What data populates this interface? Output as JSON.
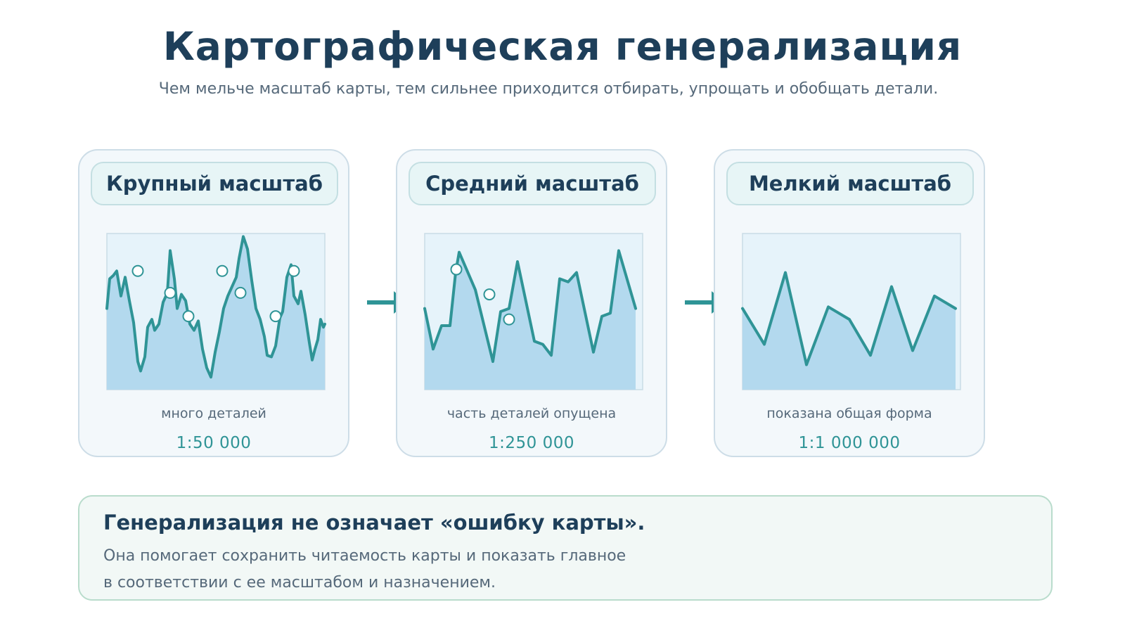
{
  "title": "Картографическая генерализация",
  "subtitle": "Чем мельче масштаб карты, тем сильнее приходится отбирать, упрощать и обобщать детали.",
  "colors": {
    "title": "#1e3f5a",
    "text": "#56697a",
    "accent": "#2f9496",
    "fill": "#b3d9ee",
    "plot_background": "#e6f3fa"
  },
  "panels": [
    {
      "header": "Крупный масштаб",
      "description": "много деталей",
      "scale": "1:50 000",
      "profile": [
        [
          0,
          0.52
        ],
        [
          4,
          0.71
        ],
        [
          9,
          0.73
        ],
        [
          14,
          0.76
        ],
        [
          20,
          0.6
        ],
        [
          26,
          0.72
        ],
        [
          32,
          0.57
        ],
        [
          38,
          0.43
        ],
        [
          44,
          0.18
        ],
        [
          48,
          0.12
        ],
        [
          54,
          0.21
        ],
        [
          58,
          0.4
        ],
        [
          64,
          0.45
        ],
        [
          68,
          0.38
        ],
        [
          74,
          0.42
        ],
        [
          80,
          0.56
        ],
        [
          86,
          0.62
        ],
        [
          90,
          0.89
        ],
        [
          96,
          0.71
        ],
        [
          100,
          0.52
        ],
        [
          106,
          0.61
        ],
        [
          112,
          0.57
        ],
        [
          118,
          0.42
        ],
        [
          124,
          0.38
        ],
        [
          130,
          0.44
        ],
        [
          136,
          0.26
        ],
        [
          142,
          0.14
        ],
        [
          148,
          0.08
        ],
        [
          154,
          0.24
        ],
        [
          160,
          0.37
        ],
        [
          166,
          0.52
        ],
        [
          172,
          0.6
        ],
        [
          178,
          0.66
        ],
        [
          184,
          0.72
        ],
        [
          188,
          0.84
        ],
        [
          194,
          0.98
        ],
        [
          200,
          0.9
        ],
        [
          206,
          0.7
        ],
        [
          212,
          0.52
        ],
        [
          218,
          0.45
        ],
        [
          224,
          0.34
        ],
        [
          228,
          0.22
        ],
        [
          234,
          0.21
        ],
        [
          240,
          0.28
        ],
        [
          246,
          0.46
        ],
        [
          250,
          0.5
        ],
        [
          256,
          0.72
        ],
        [
          262,
          0.8
        ],
        [
          266,
          0.6
        ],
        [
          272,
          0.55
        ],
        [
          276,
          0.63
        ],
        [
          282,
          0.48
        ],
        [
          288,
          0.3
        ],
        [
          292,
          0.19
        ],
        [
          296,
          0.26
        ],
        [
          300,
          0.32
        ],
        [
          304,
          0.45
        ],
        [
          308,
          0.4
        ],
        [
          310,
          0.42
        ]
      ],
      "markers": [
        [
          44,
          0.76
        ],
        [
          90,
          0.62
        ],
        [
          116,
          0.47
        ],
        [
          164,
          0.76
        ],
        [
          190,
          0.62
        ],
        [
          240,
          0.47
        ],
        [
          266,
          0.76
        ]
      ]
    },
    {
      "header": "Средний масштаб",
      "description": "часть деталей опущена",
      "scale": "1:250 000",
      "profile": [
        [
          0,
          0.52
        ],
        [
          12,
          0.26
        ],
        [
          24,
          0.41
        ],
        [
          36,
          0.41
        ],
        [
          44,
          0.75
        ],
        [
          49,
          0.88
        ],
        [
          72,
          0.64
        ],
        [
          97,
          0.18
        ],
        [
          108,
          0.5
        ],
        [
          120,
          0.52
        ],
        [
          132,
          0.82
        ],
        [
          156,
          0.31
        ],
        [
          168,
          0.29
        ],
        [
          180,
          0.22
        ],
        [
          192,
          0.71
        ],
        [
          204,
          0.69
        ],
        [
          216,
          0.75
        ],
        [
          240,
          0.24
        ],
        [
          252,
          0.47
        ],
        [
          264,
          0.49
        ],
        [
          276,
          0.89
        ],
        [
          300,
          0.52
        ]
      ],
      "markers": [
        [
          45,
          0.77
        ],
        [
          92,
          0.61
        ],
        [
          120,
          0.45
        ]
      ]
    },
    {
      "header": "Мелкий масштаб",
      "description": "показана общая форма",
      "scale": "1:1 000 000",
      "profile": [
        [
          0,
          0.52
        ],
        [
          31,
          0.29
        ],
        [
          61,
          0.75
        ],
        [
          91,
          0.16
        ],
        [
          122,
          0.53
        ],
        [
          152,
          0.45
        ],
        [
          182,
          0.22
        ],
        [
          212,
          0.66
        ],
        [
          242,
          0.25
        ],
        [
          273,
          0.6
        ],
        [
          303,
          0.52
        ]
      ],
      "markers": []
    }
  ],
  "note": {
    "title": "Генерализация не означает «ошибку карты».",
    "line1": "Она помогает сохранить читаемость карты и показать главное",
    "line2": "в соответствии с ее масштабом и назначением."
  }
}
